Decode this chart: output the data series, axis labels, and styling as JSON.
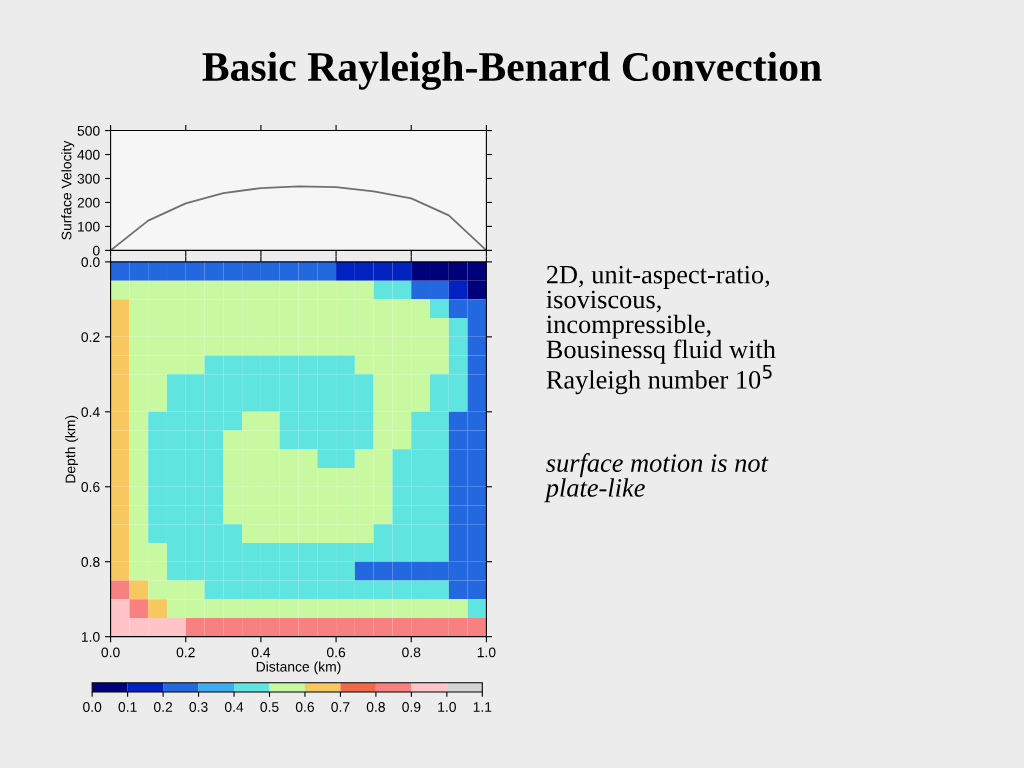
{
  "chart_data": [
    {
      "type": "line",
      "title": "Basic Rayleigh-Benard Convection",
      "ylabel": "Surface Velocity",
      "x": [
        0.0,
        0.1,
        0.2,
        0.3,
        0.4,
        0.5,
        0.6,
        0.7,
        0.8,
        0.9,
        1.0
      ],
      "series": [
        {
          "color": "#707070",
          "values": [
            0,
            124,
            196,
            239,
            260,
            267,
            264,
            246,
            217,
            146,
            0
          ]
        }
      ],
      "xlim": [
        0,
        1
      ],
      "xticks": [
        {
          "value": 0,
          "label": null
        },
        {
          "value": 0.2,
          "label": null
        },
        {
          "value": 0.4,
          "label": null
        },
        {
          "value": 0.6,
          "label": null
        },
        {
          "value": 0.8,
          "label": null
        },
        {
          "value": 1.0,
          "label": null
        }
      ],
      "ylim": [
        0,
        500
      ],
      "yticks": [
        0,
        100,
        200,
        300,
        400,
        500
      ],
      "tick_labels": "y",
      "grid": false,
      "legend": false,
      "marker": "none",
      "line_style": "solid"
    },
    {
      "type": "heatmap",
      "xlabel": "Distance (km)",
      "ylabel": "Depth (km)",
      "annotations": [
        "2D, unit-aspect-ratio,\nisoviscous,\nincompressible,\nBousinessq fluid with\nRayleigh number 10$^{5}$",
        "surface motion is not\nplate-like"
      ],
      "xlim": [
        0,
        1
      ],
      "ylim": [
        1,
        0
      ],
      "xticks": [
        {
          "value": 0,
          "label": "0.0"
        },
        {
          "value": 0.2,
          "label": "0.2"
        },
        {
          "value": 0.4,
          "label": "0.4"
        },
        {
          "value": 0.6,
          "label": "0.6"
        },
        {
          "value": 0.8,
          "label": "0.8"
        },
        {
          "value": 1.0,
          "label": "1.0"
        }
      ],
      "yticks": [
        {
          "value": 0,
          "label": "0.0"
        },
        {
          "value": 0.2,
          "label": "0.2"
        },
        {
          "value": 0.4,
          "label": "0.4"
        },
        {
          "value": 0.6,
          "label": "0.6"
        },
        {
          "value": 0.8,
          "label": "0.8"
        },
        {
          "value": 1.0,
          "label": "1.0"
        }
      ],
      "colors": [
        "#00007a",
        "#0022c0",
        "#2468e0",
        "#40acf0",
        "#60e4e0",
        "#c8f8a0",
        "#f8c860",
        "#f06a48",
        "#f88080",
        "#ffc4c8",
        "#d4d4d4"
      ],
      "clim": [
        0,
        1.1
      ],
      "cticks": [
        {
          "value": 0,
          "label": "0.0"
        },
        {
          "value": 0.1,
          "label": "0.1"
        },
        {
          "value": 0.2,
          "label": "0.2"
        },
        {
          "value": 0.3,
          "label": "0.3"
        },
        {
          "value": 0.4,
          "label": "0.4"
        },
        {
          "value": 0.5,
          "label": "0.5"
        },
        {
          "value": 0.6,
          "label": "0.6"
        },
        {
          "value": 0.7,
          "label": "0.7"
        },
        {
          "value": 0.8,
          "label": "0.8"
        },
        {
          "value": 0.9,
          "label": "0.9"
        },
        {
          "value": 1.0,
          "label": "1.0"
        },
        {
          "value": 1.1,
          "label": "1.1"
        }
      ],
      "cells": [
        [
          0.2,
          0.2,
          0.2,
          0.2,
          0.2,
          0.2,
          0.2,
          0.2,
          0.2,
          0.2,
          0.2,
          0.2,
          0.1,
          0.1,
          0.1,
          0.1,
          0.0,
          0.0,
          0.0,
          0.0
        ],
        [
          0.6,
          0.6,
          0.6,
          0.6,
          0.6,
          0.6,
          0.6,
          0.5,
          0.5,
          0.5,
          0.5,
          0.5,
          0.5,
          0.5,
          0.4,
          0.4,
          0.3,
          0.2,
          0.1,
          0.0
        ],
        [
          0.7,
          0.6,
          0.6,
          0.6,
          0.6,
          0.6,
          0.5,
          0.5,
          0.5,
          0.5,
          0.5,
          0.5,
          0.5,
          0.5,
          0.5,
          0.5,
          0.5,
          0.4,
          0.3,
          0.2
        ],
        [
          0.7,
          0.6,
          0.6,
          0.6,
          0.5,
          0.5,
          0.5,
          0.5,
          0.5,
          0.5,
          0.5,
          0.5,
          0.5,
          0.5,
          0.5,
          0.5,
          0.5,
          0.5,
          0.4,
          0.2
        ],
        [
          0.7,
          0.6,
          0.5,
          0.5,
          0.5,
          0.5,
          0.5,
          0.5,
          0.5,
          0.5,
          0.5,
          0.5,
          0.5,
          0.5,
          0.5,
          0.5,
          0.5,
          0.5,
          0.4,
          0.3
        ],
        [
          0.7,
          0.6,
          0.5,
          0.5,
          0.5,
          0.4,
          0.4,
          0.4,
          0.4,
          0.4,
          0.4,
          0.4,
          0.4,
          0.5,
          0.5,
          0.5,
          0.5,
          0.5,
          0.4,
          0.3
        ],
        [
          0.7,
          0.6,
          0.5,
          0.4,
          0.4,
          0.4,
          0.4,
          0.4,
          0.4,
          0.4,
          0.4,
          0.4,
          0.4,
          0.4,
          0.5,
          0.5,
          0.5,
          0.4,
          0.4,
          0.3
        ],
        [
          0.7,
          0.6,
          0.5,
          0.4,
          0.4,
          0.4,
          0.4,
          0.4,
          0.4,
          0.4,
          0.4,
          0.4,
          0.4,
          0.4,
          0.5,
          0.5,
          0.5,
          0.4,
          0.4,
          0.3
        ],
        [
          0.7,
          0.6,
          0.4,
          0.4,
          0.4,
          0.4,
          0.4,
          0.5,
          0.5,
          0.4,
          0.4,
          0.4,
          0.4,
          0.4,
          0.5,
          0.5,
          0.4,
          0.4,
          0.3,
          0.2
        ],
        [
          0.7,
          0.6,
          0.4,
          0.4,
          0.4,
          0.4,
          0.5,
          0.5,
          0.5,
          0.4,
          0.4,
          0.4,
          0.4,
          0.4,
          0.5,
          0.5,
          0.4,
          0.4,
          0.3,
          0.2
        ],
        [
          0.7,
          0.6,
          0.4,
          0.4,
          0.4,
          0.4,
          0.5,
          0.5,
          0.5,
          0.5,
          0.5,
          0.4,
          0.4,
          0.5,
          0.5,
          0.4,
          0.4,
          0.4,
          0.3,
          0.2
        ],
        [
          0.7,
          0.6,
          0.4,
          0.4,
          0.4,
          0.4,
          0.5,
          0.5,
          0.5,
          0.5,
          0.5,
          0.5,
          0.5,
          0.5,
          0.5,
          0.4,
          0.4,
          0.4,
          0.3,
          0.2
        ],
        [
          0.7,
          0.6,
          0.4,
          0.4,
          0.4,
          0.4,
          0.5,
          0.5,
          0.5,
          0.5,
          0.5,
          0.5,
          0.5,
          0.5,
          0.5,
          0.4,
          0.4,
          0.4,
          0.3,
          0.2
        ],
        [
          0.7,
          0.6,
          0.4,
          0.4,
          0.4,
          0.4,
          0.5,
          0.5,
          0.5,
          0.5,
          0.5,
          0.5,
          0.5,
          0.5,
          0.5,
          0.4,
          0.4,
          0.4,
          0.3,
          0.2
        ],
        [
          0.7,
          0.6,
          0.4,
          0.4,
          0.4,
          0.4,
          0.4,
          0.5,
          0.5,
          0.5,
          0.5,
          0.5,
          0.5,
          0.5,
          0.4,
          0.4,
          0.4,
          0.4,
          0.3,
          0.2
        ],
        [
          0.7,
          0.6,
          0.5,
          0.4,
          0.4,
          0.4,
          0.4,
          0.4,
          0.4,
          0.4,
          0.4,
          0.4,
          0.4,
          0.4,
          0.4,
          0.4,
          0.4,
          0.4,
          0.3,
          0.2
        ],
        [
          0.7,
          0.6,
          0.5,
          0.4,
          0.4,
          0.4,
          0.4,
          0.4,
          0.4,
          0.4,
          0.4,
          0.4,
          0.4,
          0.3,
          0.3,
          0.3,
          0.3,
          0.3,
          0.3,
          0.2
        ],
        [
          0.8,
          0.7,
          0.6,
          0.5,
          0.5,
          0.4,
          0.4,
          0.4,
          0.4,
          0.4,
          0.4,
          0.4,
          0.4,
          0.4,
          0.4,
          0.4,
          0.4,
          0.4,
          0.3,
          0.3
        ],
        [
          0.9,
          0.8,
          0.7,
          0.6,
          0.6,
          0.5,
          0.5,
          0.5,
          0.5,
          0.5,
          0.5,
          0.5,
          0.5,
          0.5,
          0.5,
          0.5,
          0.5,
          0.5,
          0.5,
          0.4
        ],
        [
          0.9,
          0.9,
          0.9,
          0.9,
          0.8,
          0.8,
          0.8,
          0.8,
          0.8,
          0.8,
          0.8,
          0.8,
          0.8,
          0.8,
          0.8,
          0.8,
          0.8,
          0.8,
          0.8,
          0.8
        ]
      ]
    }
  ]
}
